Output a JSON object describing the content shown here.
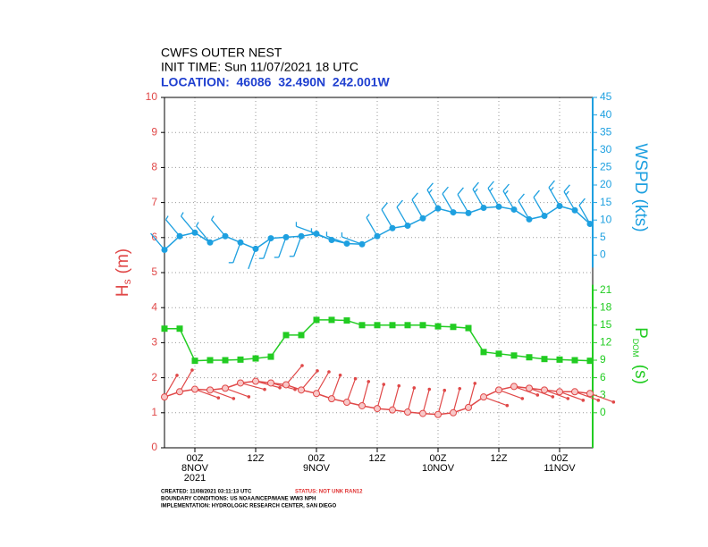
{
  "chart_data": {
    "type": "line",
    "title": [
      "CWFS OUTER NEST",
      "INIT TIME: Sun 11/07/2021 18 UTC",
      "LOCATION:  46086  32.490N  242.001W"
    ],
    "categories": [
      null,
      null,
      [
        "00Z",
        "8NOV",
        "2021"
      ],
      null,
      null,
      null,
      [
        "12Z"
      ],
      null,
      null,
      null,
      [
        "00Z",
        "9NOV"
      ],
      null,
      null,
      null,
      [
        "12Z"
      ],
      null,
      null,
      null,
      [
        "00Z",
        "10NOV"
      ],
      null,
      null,
      null,
      [
        "12Z"
      ],
      null,
      null,
      null,
      [
        "00Z",
        "11NOV"
      ],
      null,
      null
    ],
    "ylabel": {
      "main": "H",
      "sub": "s",
      "unit": "(m)"
    },
    "y2label": "WSPD (kts)",
    "y3label": {
      "main": "P",
      "sub": "DOM",
      "unit": "(s)"
    },
    "ylim": [
      0,
      10
    ],
    "yticks": [
      0,
      1,
      2,
      3,
      4,
      5,
      6,
      7,
      8,
      9,
      10
    ],
    "y2lim": [
      -55,
      45
    ],
    "y2ticks": [
      0,
      5,
      10,
      15,
      20,
      25,
      30,
      35,
      40,
      45
    ],
    "y3lim": [
      -6,
      54
    ],
    "y3ticks": [
      0,
      3,
      6,
      9,
      12,
      15,
      18,
      21
    ],
    "grid": true,
    "series": [
      {
        "color": "#e04848",
        "marker": "circle",
        "values": [
          1.45,
          1.6,
          1.67,
          1.65,
          1.7,
          1.85,
          1.9,
          1.85,
          1.8,
          1.65,
          1.55,
          1.4,
          1.3,
          1.2,
          1.12,
          1.08,
          1.02,
          0.98,
          0.95,
          1.0,
          1.15,
          1.45,
          1.65,
          1.75,
          1.7,
          1.65,
          1.6,
          1.6,
          1.55
        ],
        "directions": [
          30,
          30,
          110,
          110,
          110,
          105,
          105,
          105,
          40,
          40,
          30,
          20,
          20,
          15,
          15,
          15,
          15,
          15,
          15,
          15,
          15,
          110,
          110,
          110,
          110,
          110,
          110,
          110,
          110
        ]
      },
      {
        "color": "#22cc22",
        "marker": "square",
        "axis": "y3",
        "values": [
          14.4,
          14.4,
          8.9,
          9,
          9,
          9.1,
          9.3,
          9.6,
          13.3,
          13.3,
          15.9,
          15.9,
          15.8,
          15,
          15,
          15,
          15,
          15,
          14.8,
          14.7,
          14.5,
          10.4,
          10.1,
          9.8,
          9.5,
          9.2,
          9.1,
          9,
          8.9
        ]
      },
      {
        "color": "#1ea0e0",
        "marker": "dot",
        "axis": "y2",
        "values": [
          1.5,
          5.4,
          6.4,
          3.6,
          5.4,
          3.6,
          1.8,
          4.8,
          5.1,
          5.4,
          6.1,
          4.3,
          3.3,
          3.1,
          5.4,
          7.7,
          8.4,
          10.5,
          13.3,
          12.2,
          12,
          13.5,
          13.8,
          13,
          10.2,
          11.2,
          14,
          12.8,
          8.9
        ],
        "directions": [
          320,
          320,
          320,
          320,
          320,
          200,
          200,
          200,
          200,
          200,
          290,
          290,
          290,
          290,
          330,
          330,
          330,
          330,
          330,
          330,
          330,
          330,
          330,
          330,
          330,
          330,
          330,
          330,
          330
        ]
      }
    ],
    "footer": [
      "CREATED: 11/08/2021 03:11:13 UTC",
      "STATUS: NOT UNK RAN12",
      "BOUNDARY CONDITIONS: US NOAA/NCEP/MANE WW3 NPH",
      "IMPLEMENTATION: HYDROLOGIC RESEARCH CENTER, SAN DIEGO"
    ]
  }
}
